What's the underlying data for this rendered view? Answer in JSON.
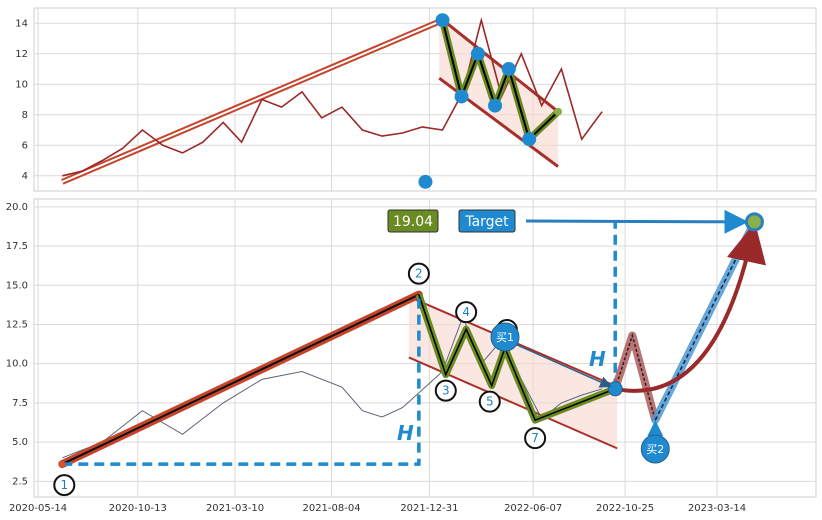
{
  "chart_data": [
    {
      "type": "line",
      "panel": "top",
      "title": "",
      "xlabel": "",
      "ylabel": "",
      "ylim": [
        3,
        15
      ],
      "yticks": [
        4,
        6,
        8,
        10,
        12,
        14
      ],
      "grid": true,
      "series": [
        {
          "color": "#9a2a2a",
          "x": [
            "2020-06-20",
            "2020-07-20",
            "2020-08-20",
            "2020-09-20",
            "2020-10-20",
            "2020-11-20",
            "2020-12-20",
            "2021-01-20",
            "2021-02-20",
            "2021-03-20",
            "2021-04-20",
            "2021-05-20",
            "2021-06-20",
            "2021-07-20",
            "2021-08-20",
            "2021-09-20",
            "2021-10-20",
            "2021-11-20",
            "2021-12-20",
            "2022-01-20",
            "2022-02-20",
            "2022-03-20",
            "2022-04-20",
            "2022-05-20",
            "2022-06-20",
            "2022-07-20",
            "2022-08-20",
            "2022-09-20"
          ],
          "y": [
            4.0,
            4.3,
            5.0,
            5.8,
            7.0,
            6.0,
            5.5,
            6.2,
            7.5,
            6.2,
            9.0,
            8.5,
            9.5,
            7.8,
            8.5,
            7.0,
            6.6,
            6.8,
            7.2,
            7.0,
            9.5,
            14.2,
            9.2,
            12.0,
            8.6,
            11.0,
            6.4,
            8.2
          ]
        }
      ],
      "pattern_points": {
        "x": [
          "2021-12-25",
          "2022-01-20",
          "2022-02-18",
          "2022-03-15",
          "2022-04-10",
          "2022-05-01",
          "2022-06-01",
          "2022-07-15"
        ],
        "y": [
          3.6,
          14.2,
          9.2,
          12.0,
          8.6,
          11.0,
          6.4,
          8.2
        ]
      },
      "channel": {
        "upper": {
          "x": [
            "2022-01-15",
            "2022-07-15"
          ],
          "y": [
            14.4,
            8.2
          ]
        },
        "lower": {
          "x": [
            "2022-01-15",
            "2022-07-15"
          ],
          "y": [
            10.4,
            4.6
          ]
        }
      },
      "rising_trendline": {
        "x": [
          "2020-06-20",
          "2022-01-20"
        ],
        "y": [
          3.6,
          14.2
        ]
      }
    },
    {
      "type": "line",
      "panel": "bottom",
      "title": "",
      "xlabel": "",
      "ylabel": "",
      "ylim": [
        1.5,
        20.5
      ],
      "yticks": [
        2.5,
        5.0,
        7.5,
        10.0,
        12.5,
        15.0,
        17.5,
        20.0
      ],
      "xticks": [
        "2020-05-14",
        "2020-10-13",
        "2021-03-10",
        "2021-08-04",
        "2021-12-31",
        "2022-06-07",
        "2022-10-25",
        "2023-03-14"
      ],
      "grid": true,
      "price_series": {
        "color": "#5a6478",
        "x": [
          "2020-06-20",
          "2020-08-20",
          "2020-10-20",
          "2020-12-20",
          "2021-02-20",
          "2021-04-20",
          "2021-06-20",
          "2021-08-20",
          "2021-09-20",
          "2021-10-20",
          "2021-11-20",
          "2022-01-20",
          "2022-02-20",
          "2022-03-20",
          "2022-04-20",
          "2022-05-20",
          "2022-06-20",
          "2022-07-20",
          "2022-08-20",
          "2022-09-20"
        ],
        "y": [
          4.0,
          5.0,
          7.0,
          5.5,
          7.5,
          9.0,
          9.5,
          8.5,
          7.0,
          6.6,
          7.2,
          9.5,
          13.0,
          10.0,
          11.5,
          9.0,
          6.5,
          7.5,
          8.0,
          8.4
        ]
      },
      "pattern_points": [
        {
          "label": "1",
          "x": "2020-06-20",
          "y": 3.6
        },
        {
          "label": "2",
          "x": "2021-12-15",
          "y": 14.4
        },
        {
          "label": "3",
          "x": "2022-01-25",
          "y": 9.3
        },
        {
          "label": "4",
          "x": "2022-02-25",
          "y": 12.2
        },
        {
          "label": "5",
          "x": "2022-04-05",
          "y": 8.6
        },
        {
          "label": "6",
          "x": "2022-04-25",
          "y": 11.0
        },
        {
          "label": "7",
          "x": "2022-06-10",
          "y": 6.4
        }
      ],
      "breakout_point": {
        "x": "2022-10-10",
        "y": 8.4
      },
      "projection_points": {
        "x": [
          "2022-10-10",
          "2022-11-05",
          "2022-12-10",
          "2023-05-10"
        ],
        "y": [
          8.4,
          11.8,
          6.4,
          19.04
        ]
      },
      "buy_markers": [
        {
          "label": "买1",
          "x": "2022-10-10",
          "y": 8.4
        },
        {
          "label": "买2",
          "x": "2022-12-10",
          "y": 6.4
        }
      ],
      "height_marker": "H",
      "target_price": "19.04",
      "target_label": "Target"
    }
  ]
}
